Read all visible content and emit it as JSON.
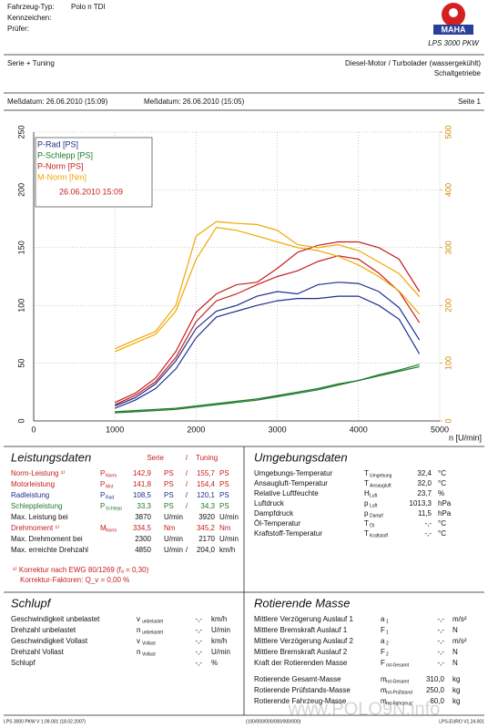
{
  "header": {
    "vehicle_label": "Fahrzeug-Typ:",
    "vehicle": "Polo n TDI",
    "plate_label": "Kennzeichen:",
    "inspector_label": "Prüfer:",
    "brand": "MAHA",
    "model": "LPS 3000 PKW",
    "mode": "Serie + Tuning",
    "engine": "Diesel-Motor / Turbolader (wassergekühlt)",
    "gearbox": "Schaltgetriebe",
    "date1": "Meßdatum: 26.06.2010 (15:09)",
    "date2": "Meßdatum: 26.06.2010 (15:05)",
    "page": "Seite 1"
  },
  "chart_data": {
    "type": "line",
    "x_label": "n [U/min]",
    "x": [
      1000,
      1250,
      1500,
      1750,
      2000,
      2250,
      2500,
      2750,
      3000,
      3250,
      3500,
      3750,
      4000,
      4250,
      4500,
      4750
    ],
    "xlim": [
      0,
      5000
    ],
    "xticks": [
      0,
      1000,
      2000,
      3000,
      4000,
      5000
    ],
    "ylim": [
      0,
      250
    ],
    "yticks": [
      0,
      50,
      100,
      150,
      200,
      250
    ],
    "y2lim": [
      0,
      500
    ],
    "y2ticks": [
      0,
      100,
      200,
      300,
      400,
      500
    ],
    "grid": true,
    "legend": "upper left",
    "legend_note": "26.06.2010 15:09",
    "series": [
      {
        "name": "P-Rad [PS]",
        "color": "#1f2f8f",
        "values": [
          11,
          18,
          28,
          45,
          72,
          90,
          95,
          100,
          104,
          106,
          106,
          108,
          108,
          100,
          88,
          58
        ]
      },
      {
        "name": "P-Schlepp [PS]",
        "color": "#1f7a2a",
        "values": [
          8,
          9,
          10,
          11,
          13,
          15,
          17,
          19,
          22,
          25,
          28,
          32,
          35,
          39,
          43,
          47
        ]
      },
      {
        "name": "P-Norm [PS]",
        "color": "#c62020",
        "values": [
          14,
          22,
          34,
          55,
          86,
          104,
          110,
          118,
          125,
          130,
          138,
          143,
          140,
          128,
          112,
          85
        ]
      },
      {
        "name": "M-Norm [Nm]",
        "color": "#f0a800",
        "axis": "y2",
        "values": [
          120,
          135,
          150,
          190,
          280,
          335,
          330,
          320,
          310,
          300,
          295,
          285,
          270,
          250,
          225,
          185
        ]
      },
      {
        "color": "#1f2f8f",
        "values": [
          13,
          20,
          32,
          52,
          80,
          95,
          100,
          108,
          112,
          110,
          118,
          120,
          119,
          112,
          98,
          70
        ]
      },
      {
        "color": "#1f7a2a",
        "values": [
          7,
          8,
          9,
          10,
          12,
          14,
          16,
          18,
          21,
          24,
          27,
          31,
          35,
          40,
          44,
          49
        ]
      },
      {
        "color": "#c62020",
        "values": [
          16,
          24,
          37,
          60,
          94,
          110,
          118,
          120,
          132,
          146,
          152,
          155,
          155,
          150,
          140,
          112
        ]
      },
      {
        "color": "#f0a800",
        "axis": "y2",
        "values": [
          125,
          140,
          155,
          200,
          320,
          345,
          342,
          340,
          330,
          305,
          300,
          305,
          295,
          275,
          255,
          215
        ]
      }
    ]
  },
  "performance": {
    "title": "Leistungsdaten",
    "col_serie": "Serie",
    "col_sep": "/",
    "col_tuning": "Tuning",
    "rows": [
      {
        "label": "Norm-Leistung ¹⁾",
        "sym": "P",
        "sub": "Norm",
        "v1": "142,9",
        "u1": "PS",
        "sep": "/",
        "v2": "155,7",
        "u2": "PS",
        "color": "#c62020"
      },
      {
        "label": "Motorleistung",
        "sym": "P",
        "sub": "Mot",
        "v1": "141,8",
        "u1": "PS",
        "sep": "/",
        "v2": "154,4",
        "u2": "PS",
        "color": "#c62020"
      },
      {
        "label": "Radleistung",
        "sym": "P",
        "sub": "Rad",
        "v1": "108,5",
        "u1": "PS",
        "sep": "/",
        "v2": "120,1",
        "u2": "PS",
        "color": "#1f2f8f"
      },
      {
        "label": "Schleppleistung",
        "sym": "P",
        "sub": "Schlepp",
        "v1": "33,3",
        "u1": "PS",
        "sep": "/",
        "v2": "34,3",
        "u2": "PS",
        "color": "#1f7a2a"
      },
      {
        "label": "Max. Leistung bei",
        "v1": "3870",
        "u1": "U/min",
        "v2": "3920",
        "u2": "U/min",
        "color": "#111"
      },
      {
        "label": "Drehmoment ¹⁾",
        "sym": "M",
        "sub": "Norm",
        "v1": "334,5",
        "u1": "Nm",
        "v2": "345,2",
        "u2": "Nm",
        "color": "#c62020"
      },
      {
        "label": "Max. Drehmoment bei",
        "v1": "2300",
        "u1": "U/min",
        "v2": "2170",
        "u2": "U/min",
        "color": "#111"
      },
      {
        "label": "Max. erreichte Drehzahl",
        "v1": "4850",
        "u1": "U/min",
        "sep": "/",
        "v2": "204,0",
        "u2": "km/h",
        "color": "#111"
      }
    ],
    "note1": "¹⁾ Korrektur nach EWG 80/1269 (fₐ = 0,30)",
    "note2": "Korrektur-Faktoren: Q_v = 0,00 %"
  },
  "environment": {
    "title": "Umgebungsdaten",
    "rows": [
      {
        "label": "Umgebungs-Temperatur",
        "sym": "T",
        "sub": "Umgebung",
        "v": "32,4",
        "u": "°C"
      },
      {
        "label": "Ansaugluft-Temperatur",
        "sym": "T",
        "sub": "Ansaugluft",
        "v": "32,0",
        "u": "°C"
      },
      {
        "label": "Relative Luftfeuchte",
        "sym": "H",
        "sub": "Luft",
        "v": "23,7",
        "u": "%"
      },
      {
        "label": "Luftdruck",
        "sym": "p",
        "sub": "Luft",
        "v": "1013,3",
        "u": "hPa"
      },
      {
        "label": "Dampfdruck",
        "sym": "p",
        "sub": "Dampf",
        "v": "11,5",
        "u": "hPa"
      },
      {
        "label": "Öl-Temperatur",
        "sym": "T",
        "sub": "Öl",
        "v": "-,-",
        "u": "°C"
      },
      {
        "label": "Kraftstoff-Temperatur",
        "sym": "T",
        "sub": "Kraftstoff",
        "v": "-,-",
        "u": "°C"
      }
    ]
  },
  "slip": {
    "title": "Schlupf",
    "rows": [
      {
        "label": "Geschwindigkeit unbelastet",
        "sym": "v",
        "sub": "unbelastet",
        "v": "-,-",
        "u": "km/h"
      },
      {
        "label": "Drehzahl unbelastet",
        "sym": "n",
        "sub": "unbelastet",
        "v": "-,-",
        "u": "U/min"
      },
      {
        "label": "Geschwindigkeit Vollast",
        "sym": "v",
        "sub": "Vollast",
        "v": "-,-",
        "u": "km/h"
      },
      {
        "label": "Drehzahl Vollast",
        "sym": "n",
        "sub": "Vollast",
        "v": "-,-",
        "u": "U/min"
      },
      {
        "label": "Schlupf",
        "v": "-,-",
        "u": "%"
      }
    ]
  },
  "rotating_mass": {
    "title": "Rotierende Masse",
    "rows": [
      {
        "label": "Mittlere Verzögerung Auslauf 1",
        "sym": "a",
        "sub": "1",
        "v": "-,-",
        "u": "m/s²"
      },
      {
        "label": "Mittlere Bremskraft Auslauf 1",
        "sym": "F",
        "sub": "1",
        "v": "-,-",
        "u": "N"
      },
      {
        "label": "Mittlere Verzögerung Auslauf 2",
        "sym": "a",
        "sub": "2",
        "v": "-,-",
        "u": "m/s²"
      },
      {
        "label": "Mittlere Bremskraft Auslauf 2",
        "sym": "F",
        "sub": "2",
        "v": "-,-",
        "u": "N"
      },
      {
        "label": "Kraft der Rotierenden Masse",
        "sym": "F",
        "sub": "rot-Gesamt",
        "v": "-,-",
        "u": "N"
      },
      {
        "label": "Rotierende Gesamt-Masse",
        "sym": "m",
        "sub": "rot-Gesamt",
        "v": "310,0",
        "u": "kg"
      },
      {
        "label": "Rotierende Prüfstands-Masse",
        "sym": "m",
        "sub": "rot-Prüfstand",
        "v": "250,0",
        "u": "kg"
      },
      {
        "label": "Rotierende Fahrzeug-Masse",
        "sym": "m",
        "sub": "rot-Fahrzeug",
        "v": "60,0",
        "u": "kg"
      }
    ]
  },
  "footer": {
    "left": "LPS 3000 PKW V 1.09.001 (18.02.2007)",
    "center": "(100/000/000/000/000/000)",
    "right": "LPS-EURO V1.24.001",
    "watermark": "www.POLO9N.info"
  }
}
